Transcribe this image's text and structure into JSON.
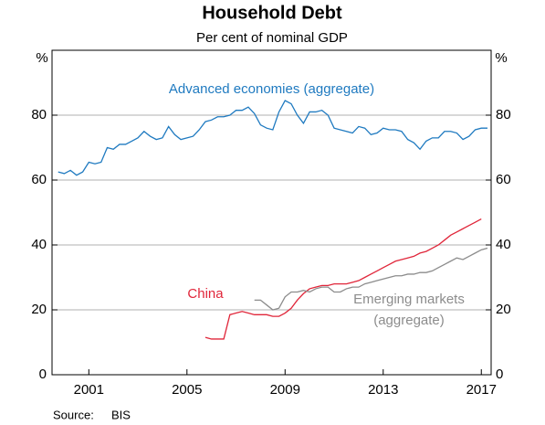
{
  "chart_data": {
    "type": "line",
    "title": "Household Debt",
    "subtitle": "Per cent of nominal GDP",
    "y_unit": "%",
    "source_label": "Source:",
    "source": "BIS",
    "xlim": [
      1999.5,
      2017.4
    ],
    "xticks": [
      2001,
      2005,
      2009,
      2013,
      2017
    ],
    "ylim": [
      0,
      100
    ],
    "yticks": [
      0,
      20,
      40,
      60,
      80
    ],
    "grid": true,
    "series": [
      {
        "name": "Advanced economies (aggregate)",
        "color": "#1f7ac0",
        "x": [
          1999.75,
          2000,
          2000.25,
          2000.5,
          2000.75,
          2001,
          2001.25,
          2001.5,
          2001.75,
          2002,
          2002.25,
          2002.5,
          2002.75,
          2003,
          2003.25,
          2003.5,
          2003.75,
          2004,
          2004.25,
          2004.5,
          2004.75,
          2005,
          2005.25,
          2005.5,
          2005.75,
          2006,
          2006.25,
          2006.5,
          2006.75,
          2007,
          2007.25,
          2007.5,
          2007.75,
          2008,
          2008.25,
          2008.5,
          2008.75,
          2009,
          2009.25,
          2009.5,
          2009.75,
          2010,
          2010.25,
          2010.5,
          2010.75,
          2011,
          2011.25,
          2011.5,
          2011.75,
          2012,
          2012.25,
          2012.5,
          2012.75,
          2013,
          2013.25,
          2013.5,
          2013.75,
          2014,
          2014.25,
          2014.5,
          2014.75,
          2015,
          2015.25,
          2015.5,
          2015.75,
          2016,
          2016.25,
          2016.5,
          2016.75,
          2017,
          2017.25
        ],
        "values": [
          62.5,
          62,
          63,
          61.5,
          62.5,
          65.5,
          65,
          65.5,
          70,
          69.5,
          71,
          71,
          72,
          73,
          75,
          73.5,
          72.5,
          73,
          76.5,
          74,
          72.5,
          73,
          73.5,
          75.5,
          78,
          78.5,
          79.5,
          79.5,
          80,
          81.5,
          81.5,
          82.5,
          80.5,
          77,
          76,
          75.5,
          81,
          84.5,
          83.5,
          80,
          77.5,
          81,
          81,
          81.5,
          80,
          76,
          75.5,
          75,
          74.5,
          76.5,
          76,
          74,
          74.5,
          76,
          75.5,
          75.5,
          75,
          72.5,
          71.5,
          69.5,
          72,
          73,
          73,
          75,
          75,
          74.5,
          72.5,
          73.5,
          75.5,
          76,
          76
        ]
      },
      {
        "name": "China",
        "color": "#e0263a",
        "x": [
          2005.75,
          2006,
          2006.25,
          2006.5,
          2006.75,
          2007,
          2007.25,
          2007.5,
          2007.75,
          2008,
          2008.25,
          2008.5,
          2008.75,
          2009,
          2009.25,
          2009.5,
          2009.75,
          2010,
          2010.25,
          2010.5,
          2010.75,
          2011,
          2011.25,
          2011.5,
          2011.75,
          2012,
          2012.25,
          2012.5,
          2012.75,
          2013,
          2013.25,
          2013.5,
          2013.75,
          2014,
          2014.25,
          2014.5,
          2014.75,
          2015,
          2015.25,
          2015.5,
          2015.75,
          2016,
          2016.25,
          2016.5,
          2016.75,
          2017
        ],
        "values": [
          11.5,
          11,
          11,
          11,
          18.5,
          19,
          19.5,
          19,
          18.5,
          18.5,
          18.5,
          18,
          18,
          19,
          20.5,
          23,
          25,
          26.5,
          27,
          27.5,
          27.5,
          28,
          28,
          28,
          28.5,
          29,
          30,
          31,
          32,
          33,
          34,
          35,
          35.5,
          36,
          36.5,
          37.5,
          38,
          39,
          40,
          41.5,
          43,
          44,
          45,
          46,
          47,
          48
        ]
      },
      {
        "name": "Emerging markets (aggregate)",
        "color": "#8c8c8c",
        "x": [
          2007.75,
          2008,
          2008.25,
          2008.5,
          2008.75,
          2009,
          2009.25,
          2009.5,
          2009.75,
          2010,
          2010.25,
          2010.5,
          2010.75,
          2011,
          2011.25,
          2011.5,
          2011.75,
          2012,
          2012.25,
          2012.5,
          2012.75,
          2013,
          2013.25,
          2013.5,
          2013.75,
          2014,
          2014.25,
          2014.5,
          2014.75,
          2015,
          2015.25,
          2015.5,
          2015.75,
          2016,
          2016.25,
          2016.5,
          2016.75,
          2017,
          2017.25
        ],
        "values": [
          23,
          23,
          21.5,
          20,
          20.5,
          24,
          25.5,
          25.5,
          26,
          25.5,
          26.5,
          27,
          27,
          25.5,
          25.5,
          26.5,
          27,
          27,
          28,
          28.5,
          29,
          29.5,
          30,
          30.5,
          30.5,
          31,
          31,
          31.5,
          31.5,
          32,
          33,
          34,
          35,
          36,
          35.5,
          36.5,
          37.5,
          38.5,
          39
        ]
      }
    ]
  }
}
